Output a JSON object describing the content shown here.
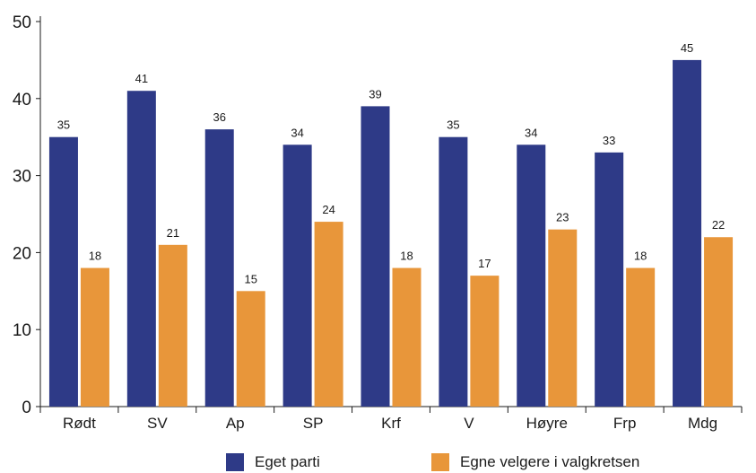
{
  "chart_data": {
    "type": "bar",
    "categories": [
      "Rødt",
      "SV",
      "Ap",
      "SP",
      "Krf",
      "V",
      "Høyre",
      "Frp",
      "Mdg"
    ],
    "series": [
      {
        "name": "Eget parti",
        "values": [
          35,
          41,
          36,
          34,
          39,
          35,
          34,
          33,
          45
        ],
        "color": "#2e3a87"
      },
      {
        "name": "Egne velgere i valgkretsen",
        "values": [
          18,
          21,
          15,
          24,
          18,
          17,
          23,
          18,
          22
        ],
        "color": "#e8963a"
      }
    ],
    "ylim": [
      0,
      50
    ],
    "yticks": [
      0,
      10,
      20,
      30,
      40,
      50
    ],
    "grid": false,
    "legend_position": "bottom"
  }
}
